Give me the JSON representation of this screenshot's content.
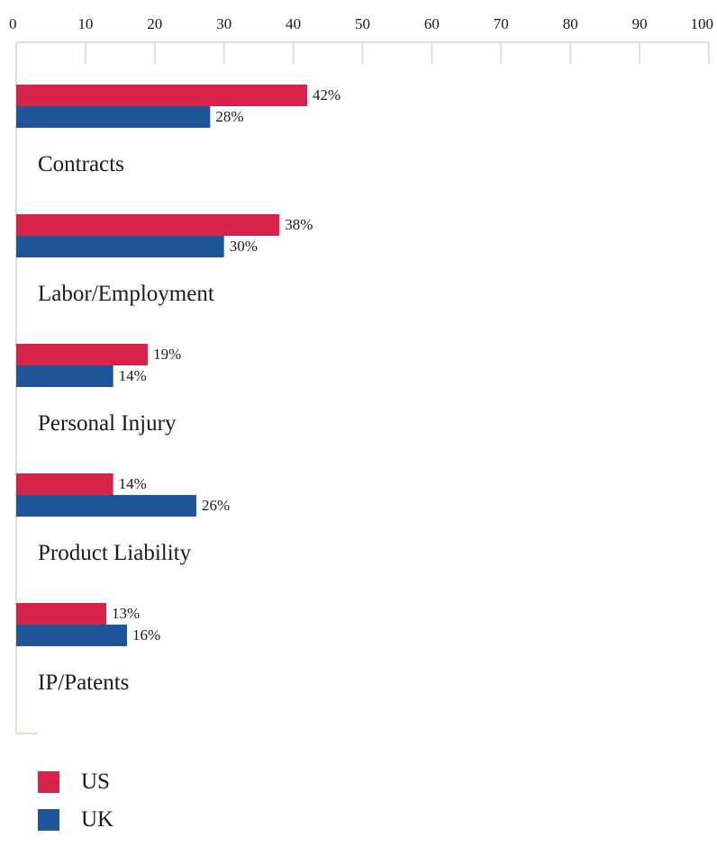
{
  "chart_data": {
    "type": "bar",
    "orientation": "horizontal",
    "categories": [
      "Contracts",
      "Labor/Employment",
      "Personal Injury",
      "Product Liability",
      "IP/Patents"
    ],
    "series": [
      {
        "name": "US",
        "values": [
          42,
          38,
          19,
          14,
          13
        ],
        "labels": [
          "42%",
          "38%",
          "19%",
          "14%",
          "13%"
        ],
        "color": "#d52349"
      },
      {
        "name": "UK",
        "values": [
          28,
          30,
          14,
          26,
          16
        ],
        "labels": [
          "28%",
          "30%",
          "14%",
          "26%",
          "16%"
        ],
        "color": "#1e5599"
      }
    ],
    "x_ticks": [
      "0",
      "10",
      "20",
      "30",
      "40",
      "50",
      "60",
      "70",
      "80",
      "90",
      "100"
    ],
    "xlim": [
      0,
      100
    ],
    "axis_position": "top",
    "grid": false,
    "legend_position": "bottom-left",
    "axis_color": "#e6ddd3"
  },
  "legend": {
    "items": [
      {
        "label": "US",
        "color": "#d52349"
      },
      {
        "label": "UK",
        "color": "#1e5599"
      }
    ]
  }
}
